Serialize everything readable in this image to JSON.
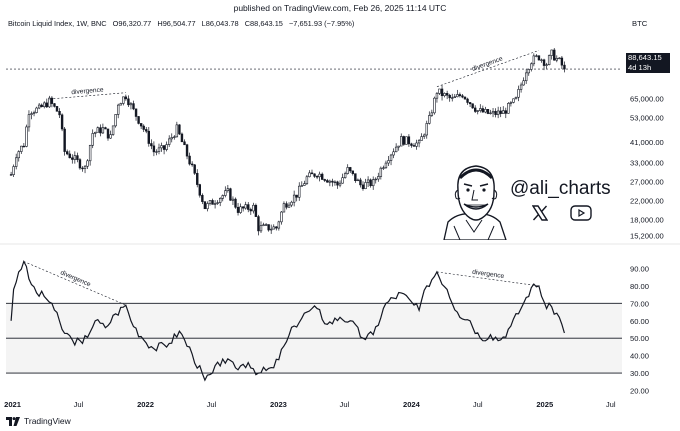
{
  "header": {
    "published": "published on TradingView.com, Feb 26, 2025 11:14 UTC"
  },
  "legend": {
    "symbol": "Bitcoin Liquid Index, 1W, BNC",
    "open": "O96,320.77",
    "high": "H96,504.77",
    "low": "L86,043.78",
    "close": "C88,643.15",
    "change": "−7,651.93 (−7.95%)",
    "currency": "BTC"
  },
  "price_tag": {
    "price": "88,643.15",
    "countdown": "4d 13h"
  },
  "branding": {
    "handle": "@ali_charts",
    "icons": [
      "x-logo-icon",
      "youtube-icon",
      "avatar-caricature"
    ]
  },
  "footer": {
    "brand": "TradingView"
  },
  "colors": {
    "ink": "#131722",
    "band_fill": "#f4f4f4",
    "background": "#ffffff"
  },
  "chart_data": [
    {
      "type": "candlestick",
      "x_axis": [
        "2021",
        "Jul",
        "2022",
        "Jul",
        "2023",
        "Jul",
        "2024",
        "Jul",
        "2025",
        "Jul"
      ],
      "y_axis_labels": [
        "100,000.00",
        "65,000.00",
        "53,000.00",
        "41,000.00",
        "33,000.00",
        "27,000.00",
        "22,000.00",
        "18,000.00",
        "15,200.00"
      ],
      "y_axis_values": [
        100000,
        65000,
        53000,
        41000,
        33000,
        27000,
        22000,
        18000,
        15200
      ],
      "scale": "log",
      "ylim": [
        14500,
        118000
      ],
      "close_path": [
        [
          "2020-12-28",
          29000
        ],
        [
          "2021-01-11",
          36000
        ],
        [
          "2021-02-01",
          40000
        ],
        [
          "2021-02-15",
          57000
        ],
        [
          "2021-03-15",
          58000
        ],
        [
          "2021-04-12",
          63000
        ],
        [
          "2021-05-10",
          55000
        ],
        [
          "2021-05-24",
          37000
        ],
        [
          "2021-06-21",
          34000
        ],
        [
          "2021-07-19",
          31000
        ],
        [
          "2021-08-09",
          45000
        ],
        [
          "2021-09-06",
          47000
        ],
        [
          "2021-09-27",
          43000
        ],
        [
          "2021-10-18",
          62000
        ],
        [
          "2021-11-08",
          67000
        ],
        [
          "2021-11-29",
          57000
        ],
        [
          "2021-12-27",
          47000
        ],
        [
          "2022-01-24",
          37000
        ],
        [
          "2022-02-21",
          38000
        ],
        [
          "2022-03-28",
          47000
        ],
        [
          "2022-05-09",
          31000
        ],
        [
          "2022-06-13",
          20500
        ],
        [
          "2022-07-18",
          22500
        ],
        [
          "2022-08-15",
          24000
        ],
        [
          "2022-09-12",
          20000
        ],
        [
          "2022-10-24",
          20500
        ],
        [
          "2022-11-07",
          16500
        ],
        [
          "2022-12-26",
          16500
        ],
        [
          "2023-01-16",
          21000
        ],
        [
          "2023-02-20",
          23500
        ],
        [
          "2023-03-20",
          28000
        ],
        [
          "2023-04-17",
          29500
        ],
        [
          "2023-06-12",
          26000
        ],
        [
          "2023-07-10",
          30500
        ],
        [
          "2023-08-14",
          26000
        ],
        [
          "2023-09-18",
          26500
        ],
        [
          "2023-10-23",
          34000
        ],
        [
          "2023-12-04",
          42000
        ],
        [
          "2024-01-22",
          40000
        ],
        [
          "2024-02-19",
          52000
        ],
        [
          "2024-03-11",
          70000
        ],
        [
          "2024-04-22",
          64000
        ],
        [
          "2024-05-20",
          68000
        ],
        [
          "2024-07-01",
          57000
        ],
        [
          "2024-08-05",
          55000
        ],
        [
          "2024-09-09",
          56000
        ],
        [
          "2024-10-14",
          64000
        ],
        [
          "2024-11-11",
          88000
        ],
        [
          "2024-11-25",
          97000
        ],
        [
          "2024-12-16",
          101000
        ],
        [
          "2025-01-06",
          94000
        ],
        [
          "2025-01-20",
          104000
        ],
        [
          "2025-02-10",
          96000
        ],
        [
          "2025-02-24",
          88643
        ]
      ],
      "annotations": [
        "divergence",
        "divergence"
      ],
      "last_price": 88643.15
    },
    {
      "type": "line",
      "name": "RSI",
      "y_axis_labels": [
        "90.00",
        "80.00",
        "70.00",
        "60.00",
        "50.00",
        "40.00",
        "30.00",
        "20.00"
      ],
      "y_axis_values": [
        90,
        80,
        70,
        60,
        50,
        40,
        30,
        20
      ],
      "ylim": [
        18,
        96
      ],
      "band_lines": [
        70,
        50,
        30
      ],
      "points": [
        [
          "2020-12-28",
          60
        ],
        [
          "2021-01-04",
          78
        ],
        [
          "2021-01-18",
          88
        ],
        [
          "2021-02-01",
          94
        ],
        [
          "2021-02-15",
          84
        ],
        [
          "2021-03-08",
          76
        ],
        [
          "2021-03-29",
          74
        ],
        [
          "2021-04-19",
          70
        ],
        [
          "2021-05-17",
          55
        ],
        [
          "2021-06-14",
          49
        ],
        [
          "2021-07-12",
          47
        ],
        [
          "2021-08-16",
          60
        ],
        [
          "2021-09-13",
          56
        ],
        [
          "2021-10-11",
          64
        ],
        [
          "2021-11-08",
          69
        ],
        [
          "2021-11-22",
          60
        ],
        [
          "2021-12-20",
          51
        ],
        [
          "2022-01-24",
          44
        ],
        [
          "2022-03-07",
          47
        ],
        [
          "2022-04-04",
          54
        ],
        [
          "2022-05-09",
          41
        ],
        [
          "2022-06-13",
          26
        ],
        [
          "2022-07-04",
          30
        ],
        [
          "2022-08-01",
          38
        ],
        [
          "2022-09-05",
          33
        ],
        [
          "2022-10-10",
          36
        ],
        [
          "2022-11-07",
          30
        ],
        [
          "2022-12-19",
          33
        ],
        [
          "2023-01-23",
          48
        ],
        [
          "2023-02-13",
          57
        ],
        [
          "2023-03-20",
          65
        ],
        [
          "2023-04-17",
          67
        ],
        [
          "2023-05-15",
          58
        ],
        [
          "2023-06-19",
          62
        ],
        [
          "2023-07-17",
          60
        ],
        [
          "2023-08-21",
          50
        ],
        [
          "2023-09-18",
          52
        ],
        [
          "2023-10-23",
          70
        ],
        [
          "2023-12-04",
          76
        ],
        [
          "2024-01-22",
          66
        ],
        [
          "2024-02-12",
          80
        ],
        [
          "2024-03-11",
          88
        ],
        [
          "2024-04-08",
          78
        ],
        [
          "2024-05-06",
          65
        ],
        [
          "2024-06-10",
          60
        ],
        [
          "2024-07-08",
          50
        ],
        [
          "2024-08-05",
          52
        ],
        [
          "2024-09-02",
          49
        ],
        [
          "2024-09-30",
          57
        ],
        [
          "2024-11-04",
          70
        ],
        [
          "2024-11-25",
          79
        ],
        [
          "2024-12-16",
          80
        ],
        [
          "2025-01-06",
          67
        ],
        [
          "2025-01-20",
          68
        ],
        [
          "2025-02-10",
          62
        ],
        [
          "2025-02-24",
          53
        ]
      ],
      "annotations": [
        "divergence",
        "divergence"
      ]
    }
  ]
}
